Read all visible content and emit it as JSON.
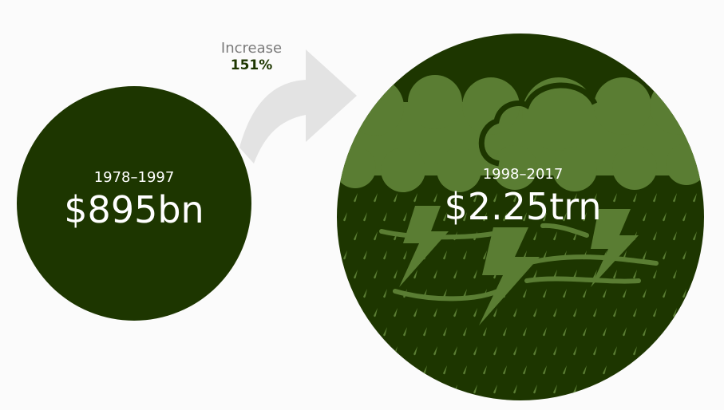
{
  "chart_data": {
    "type": "bubble",
    "title": "",
    "colors": {
      "circle": "#1d3600",
      "storm": "#5a7d33",
      "arrow": "#e3e3e3",
      "increase_text": "#7a7a7a",
      "increase_value": "#1d3600"
    },
    "icons": [
      "curved-arrow-icon",
      "storm-cloud-icon",
      "lightning-icon",
      "rain-icon",
      "wind-icon"
    ],
    "periods": [
      {
        "label": "1978–1997",
        "value_label": "$895bn",
        "value_bn": 895
      },
      {
        "label": "1998–2017",
        "value_label": "$2.25trn",
        "value_bn": 2250
      }
    ],
    "increase": {
      "label": "Increase",
      "value_label": "151%",
      "value_pct": 151
    }
  }
}
